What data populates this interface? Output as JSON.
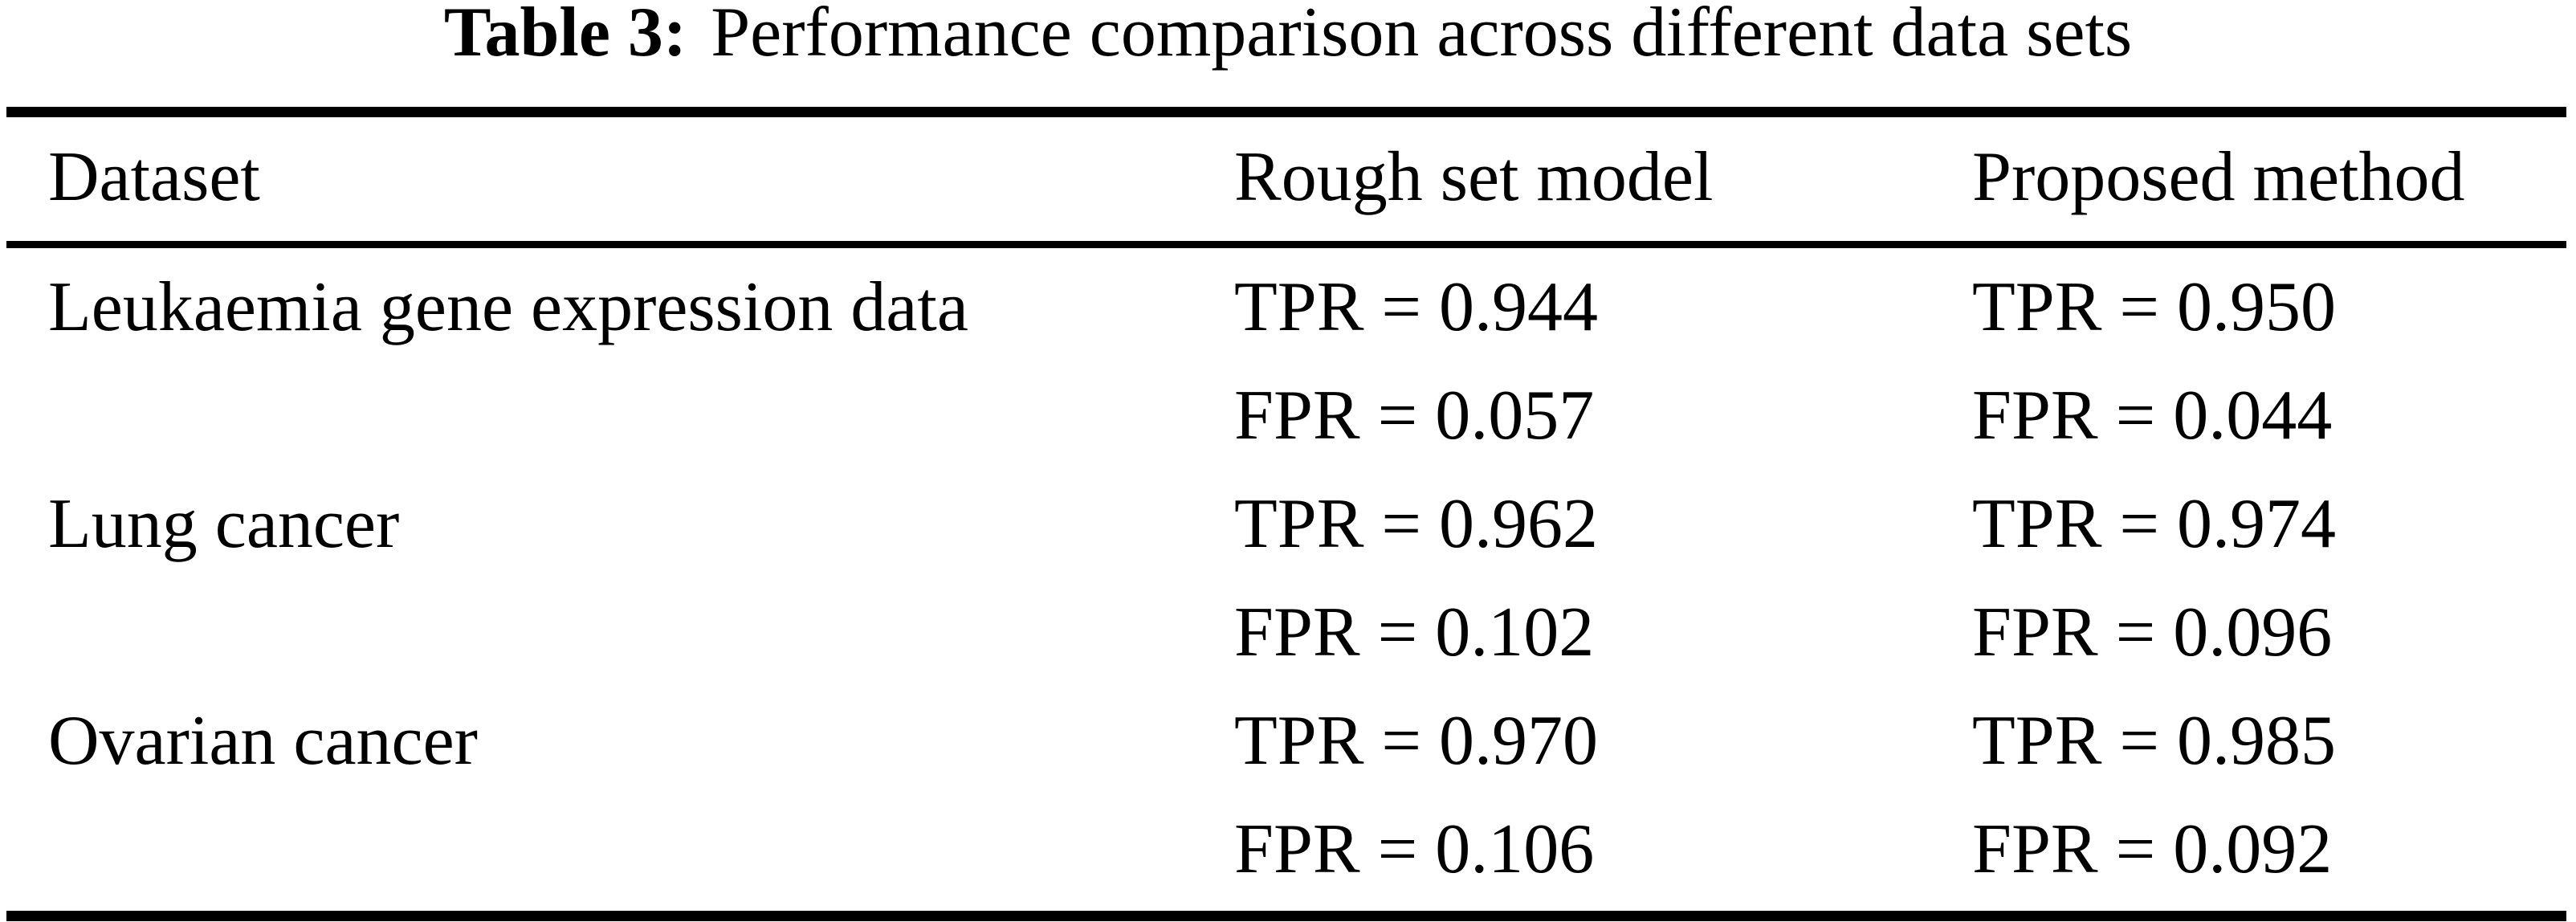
{
  "caption": {
    "label": "Table 3:",
    "text": "Performance comparison across different data sets"
  },
  "columns": {
    "dataset": "Dataset",
    "rough": "Rough set model",
    "proposed": "Proposed method"
  },
  "rows": [
    {
      "dataset": "Leukaemia gene expression data",
      "rough_tpr": "TPR = 0.944",
      "rough_fpr": "FPR = 0.057",
      "proposed_tpr": "TPR = 0.950",
      "proposed_fpr": "FPR = 0.044"
    },
    {
      "dataset": "Lung cancer",
      "rough_tpr": "TPR = 0.962",
      "rough_fpr": "FPR = 0.102",
      "proposed_tpr": "TPR = 0.974",
      "proposed_fpr": "FPR = 0.096"
    },
    {
      "dataset": "Ovarian cancer",
      "rough_tpr": "TPR = 0.970",
      "rough_fpr": "FPR = 0.106",
      "proposed_tpr": "TPR = 0.985",
      "proposed_fpr": "FPR = 0.092"
    }
  ],
  "chart_data": {
    "type": "table",
    "title": "Table 3: Performance comparison across different data sets",
    "columns": [
      "Dataset",
      "Rough set model",
      "Proposed method"
    ],
    "datasets": [
      "Leukaemia gene expression data",
      "Lung cancer",
      "Ovarian cancer"
    ],
    "series": [
      {
        "name": "Rough set model TPR",
        "values": [
          0.944,
          0.962,
          0.97
        ]
      },
      {
        "name": "Rough set model FPR",
        "values": [
          0.057,
          0.102,
          0.106
        ]
      },
      {
        "name": "Proposed method TPR",
        "values": [
          0.95,
          0.974,
          0.985
        ]
      },
      {
        "name": "Proposed method FPR",
        "values": [
          0.044,
          0.096,
          0.092
        ]
      }
    ]
  }
}
